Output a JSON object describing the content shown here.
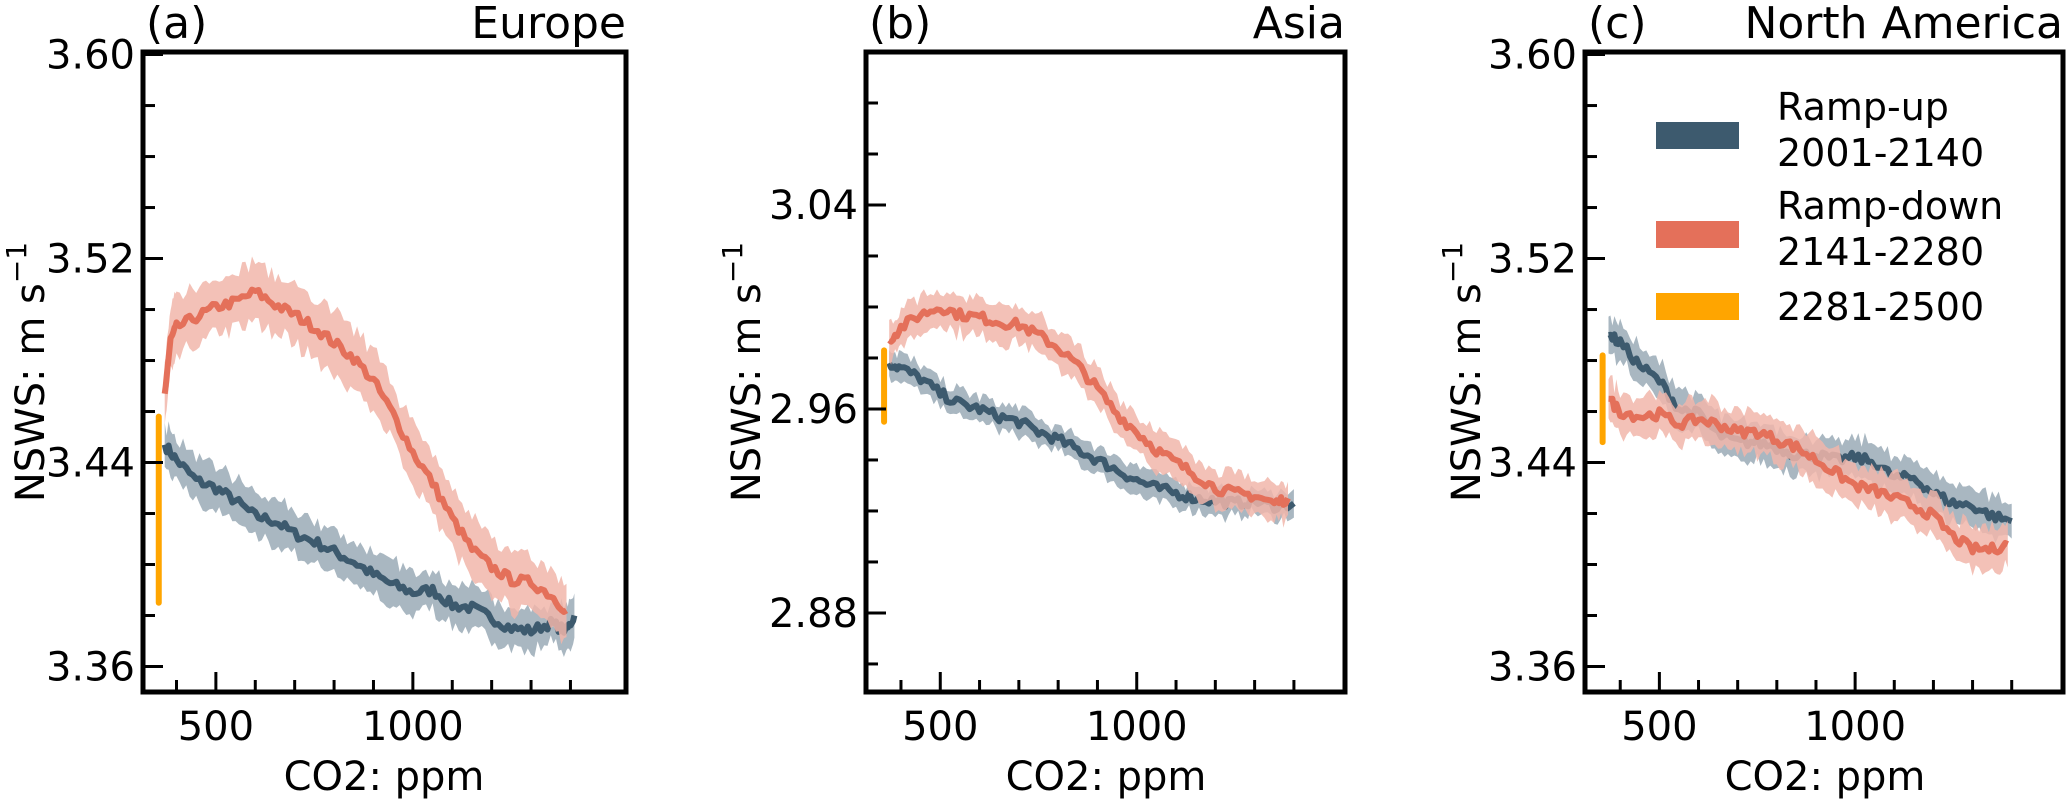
{
  "figure": {
    "xlabel": "CO2: ppm",
    "ylabel_main": "NSWS: m s",
    "ylabel_sup": "−1"
  },
  "legend": {
    "placement": "upper-right of panel (c)",
    "items": [
      {
        "line1": "Ramp-up",
        "line2": "2001-2140",
        "color": "#3d5a6e"
      },
      {
        "line1": "Ramp-down",
        "line2": "2141-2280",
        "color": "#e4705a"
      },
      {
        "line1": "2281-2500",
        "line2": "",
        "color": "#ffa500"
      }
    ]
  },
  "colors": {
    "ramp_up": "#3d5a6e",
    "ramp_up_band": "#9aaab6",
    "ramp_down": "#e4705a",
    "ramp_down_band": "#f1b6aa",
    "late": "#ffa500"
  },
  "chart_data": [
    {
      "type": "line",
      "panel_label": "(a)",
      "title": "Europe",
      "xlabel": "CO2: ppm",
      "ylabel": "NSWS: m s^-1",
      "xlim": [
        315,
        1541
      ],
      "ylim": [
        3.35,
        3.601
      ],
      "xticks": [
        500,
        1000
      ],
      "xtick_labels": [
        "500",
        "1000"
      ],
      "xminor": [
        400,
        600,
        700,
        800,
        900,
        1100,
        1200,
        1300,
        1400
      ],
      "yticks": [
        3.36,
        3.44,
        3.52,
        3.6
      ],
      "ytick_labels": [
        "3.36",
        "3.44",
        "3.52",
        "3.60"
      ],
      "yminor": [
        3.38,
        3.4,
        3.42,
        3.46,
        3.48,
        3.5,
        3.54,
        3.56,
        3.58
      ],
      "grid": false,
      "series": [
        {
          "name": "Ramp-up 2001-2140",
          "x": [
            370,
            400,
            450,
            500,
            550,
            600,
            650,
            700,
            750,
            800,
            850,
            900,
            950,
            1000,
            1050,
            1100,
            1150,
            1200,
            1250,
            1300,
            1350,
            1390,
            1410
          ],
          "y": [
            3.447,
            3.441,
            3.433,
            3.43,
            3.425,
            3.419,
            3.417,
            3.412,
            3.409,
            3.405,
            3.401,
            3.396,
            3.392,
            3.389,
            3.39,
            3.384,
            3.383,
            3.379,
            3.375,
            3.374,
            3.377,
            3.374,
            3.38
          ],
          "band": 0.008
        },
        {
          "name": "Ramp-down 2141-2280",
          "x": [
            370,
            385,
            400,
            450,
            500,
            550,
            600,
            650,
            700,
            750,
            800,
            850,
            900,
            950,
            1000,
            1050,
            1100,
            1150,
            1200,
            1250,
            1300,
            1350,
            1390
          ],
          "y": [
            3.467,
            3.488,
            3.493,
            3.497,
            3.501,
            3.503,
            3.507,
            3.502,
            3.498,
            3.493,
            3.487,
            3.481,
            3.472,
            3.459,
            3.444,
            3.432,
            3.418,
            3.406,
            3.399,
            3.394,
            3.393,
            3.388,
            3.382
          ],
          "band": 0.011
        },
        {
          "name": "2281-2500",
          "x": [
            355,
            355
          ],
          "y": [
            3.385,
            3.458
          ]
        }
      ]
    },
    {
      "type": "line",
      "panel_label": "(b)",
      "title": "Asia",
      "xlabel": "CO2: ppm",
      "ylabel": "NSWS: m s^-1",
      "xlim": [
        311,
        1530
      ],
      "ylim": [
        2.849,
        3.1
      ],
      "xticks": [
        500,
        1000
      ],
      "xtick_labels": [
        "500",
        "1000"
      ],
      "xminor": [
        400,
        600,
        700,
        800,
        900,
        1100,
        1200,
        1300,
        1400
      ],
      "yticks": [
        2.88,
        2.96,
        3.04
      ],
      "ytick_labels": [
        "2.88",
        "2.96",
        "3.04"
      ],
      "yminor": [
        2.86,
        2.9,
        2.92,
        2.94,
        2.98,
        3.0,
        3.02,
        3.06,
        3.08
      ],
      "grid": false,
      "series": [
        {
          "name": "Ramp-up 2001-2140",
          "x": [
            370,
            400,
            450,
            500,
            550,
            600,
            650,
            700,
            750,
            800,
            850,
            900,
            950,
            1000,
            1050,
            1100,
            1150,
            1200,
            1250,
            1300,
            1350,
            1400
          ],
          "y": [
            2.978,
            2.976,
            2.972,
            2.966,
            2.962,
            2.96,
            2.957,
            2.955,
            2.951,
            2.948,
            2.944,
            2.94,
            2.936,
            2.932,
            2.929,
            2.927,
            2.925,
            2.924,
            2.923,
            2.924,
            2.922,
            2.923
          ],
          "band": 0.005
        },
        {
          "name": "Ramp-down 2141-2280",
          "x": [
            370,
            400,
            450,
            500,
            550,
            600,
            650,
            700,
            750,
            800,
            850,
            900,
            950,
            1000,
            1050,
            1100,
            1150,
            1200,
            1250,
            1300,
            1350,
            1385
          ],
          "y": [
            2.987,
            2.992,
            2.997,
            3.0,
            2.997,
            2.996,
            2.994,
            2.993,
            2.989,
            2.984,
            2.977,
            2.968,
            2.958,
            2.951,
            2.944,
            2.939,
            2.934,
            2.929,
            2.927,
            2.926,
            2.923,
            2.925
          ],
          "band": 0.007
        },
        {
          "name": "2281-2500",
          "x": [
            357,
            357
          ],
          "y": [
            2.955,
            2.983
          ]
        }
      ]
    },
    {
      "type": "line",
      "panel_label": "(c)",
      "title": "North America",
      "xlabel": "CO2: ppm",
      "ylabel": "NSWS: m s^-1",
      "xlim": [
        310,
        1531
      ],
      "ylim": [
        3.35,
        3.601
      ],
      "xticks": [
        500,
        1000
      ],
      "xtick_labels": [
        "500",
        "1000"
      ],
      "xminor": [
        400,
        600,
        700,
        800,
        900,
        1100,
        1200,
        1300,
        1400
      ],
      "yticks": [
        3.36,
        3.44,
        3.52,
        3.6
      ],
      "ytick_labels": [
        "3.36",
        "3.44",
        "3.52",
        "3.60"
      ],
      "yminor": [
        3.38,
        3.4,
        3.42,
        3.46,
        3.48,
        3.5,
        3.54,
        3.56,
        3.58
      ],
      "grid": false,
      "series": [
        {
          "name": "Ramp-up 2001-2140",
          "x": [
            370,
            400,
            450,
            500,
            550,
            600,
            650,
            700,
            750,
            800,
            850,
            900,
            950,
            1000,
            1050,
            1100,
            1150,
            1200,
            1250,
            1300,
            1350,
            1400
          ],
          "y": [
            3.49,
            3.487,
            3.478,
            3.472,
            3.461,
            3.459,
            3.451,
            3.448,
            3.448,
            3.446,
            3.443,
            3.443,
            3.441,
            3.442,
            3.44,
            3.434,
            3.434,
            3.428,
            3.424,
            3.423,
            3.419,
            3.417
          ],
          "band": 0.007
        },
        {
          "name": "Ramp-down 2141-2280",
          "x": [
            370,
            400,
            450,
            500,
            550,
            600,
            650,
            700,
            750,
            800,
            850,
            900,
            950,
            1000,
            1050,
            1100,
            1150,
            1200,
            1250,
            1300,
            1350,
            1390
          ],
          "y": [
            3.465,
            3.46,
            3.458,
            3.459,
            3.455,
            3.457,
            3.455,
            3.452,
            3.452,
            3.449,
            3.446,
            3.441,
            3.436,
            3.431,
            3.429,
            3.426,
            3.423,
            3.419,
            3.411,
            3.406,
            3.406,
            3.408
          ],
          "band": 0.008
        },
        {
          "name": "2281-2500",
          "x": [
            355,
            355
          ],
          "y": [
            3.448,
            3.482
          ]
        }
      ]
    }
  ]
}
